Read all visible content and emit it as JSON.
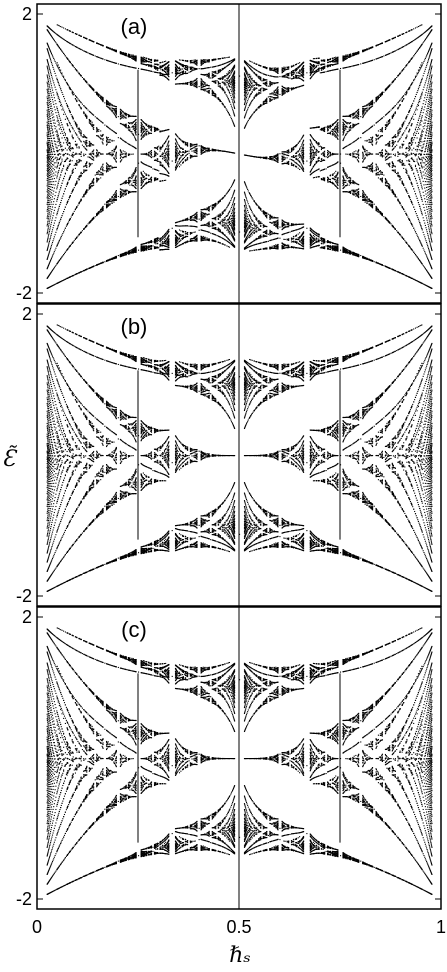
{
  "figure": {
    "ylabel": "Ɛ̃",
    "xlabel": "ℏₛ",
    "xticks": [
      "0",
      "0.5",
      "1"
    ]
  },
  "chart_data": [
    {
      "type": "scatter",
      "panel_label": "(a)",
      "xlim": [
        0,
        1
      ],
      "ylim": [
        -2,
        2
      ],
      "ytick_labels": [
        "2",
        "-2"
      ],
      "xtick_labels": [],
      "grid": false,
      "vertical_lines_x": [
        0.25,
        0.5,
        0.75
      ],
      "symmetric_about_x_half": false,
      "color": "#000000"
    },
    {
      "type": "scatter",
      "panel_label": "(b)",
      "xlim": [
        0,
        1
      ],
      "ylim": [
        -2,
        2
      ],
      "ytick_labels": [
        "2",
        "-2"
      ],
      "xtick_labels": [],
      "grid": false,
      "vertical_lines_x": [
        0.25,
        0.5,
        0.75
      ],
      "symmetric_about_x_half": true,
      "color": "#000000"
    },
    {
      "type": "scatter",
      "panel_label": "(c)",
      "xlim": [
        0,
        1
      ],
      "ylim": [
        -2,
        2
      ],
      "ytick_labels": [
        "2",
        "-2"
      ],
      "xtick_labels": [
        "0",
        "0.5",
        "1"
      ],
      "grid": false,
      "vertical_lines_x": [
        0.25,
        0.5,
        0.75
      ],
      "symmetric_about_x_half": true,
      "color": "#000000"
    }
  ]
}
